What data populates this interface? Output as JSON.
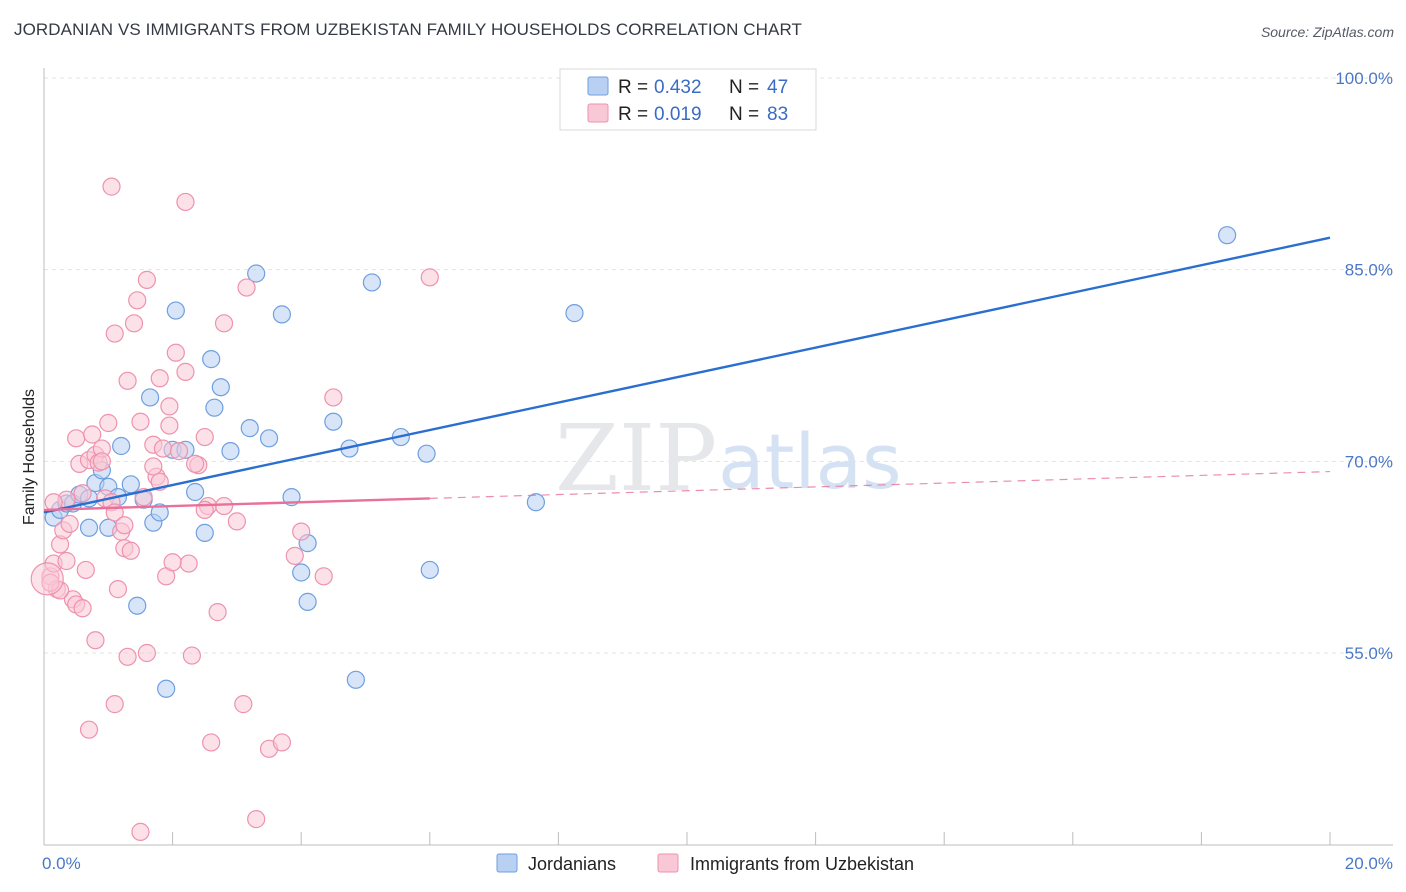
{
  "title": "JORDANIAN VS IMMIGRANTS FROM UZBEKISTAN FAMILY HOUSEHOLDS CORRELATION CHART",
  "source": "Source: ZipAtlas.com",
  "watermark": {
    "zip": "ZIP",
    "atlas": "atlas"
  },
  "legend": {
    "rows": [
      {
        "r_label": "R = ",
        "r_value": "0.432",
        "n_label": "N = ",
        "n_value": "47",
        "fill": "#b8d0f2",
        "stroke": "#6e9fe0"
      },
      {
        "r_label": "R = ",
        "r_value": "0.019",
        "n_label": "N = ",
        "n_value": "83",
        "fill": "#f9c8d6",
        "stroke": "#ee92ae"
      }
    ]
  },
  "bottom_legend": [
    "Jordanians",
    "Immigrants from Uzbekistan"
  ],
  "chart_data": {
    "type": "scatter",
    "ylabel": "Family Households",
    "x_min_label": "0.0%",
    "x_max_label": "20.0%",
    "xlim": [
      0,
      20
    ],
    "ylim": [
      40,
      102
    ],
    "y_ticks": [
      {
        "value": 100,
        "label": "100.0%"
      },
      {
        "value": 85,
        "label": "85.0%"
      },
      {
        "value": 70,
        "label": "70.0%"
      },
      {
        "value": 55,
        "label": "55.0%"
      }
    ],
    "grid": true,
    "series": [
      {
        "name": "Jordanians",
        "color": "#6e9fe0",
        "fill": "#b8d0f2",
        "trend": {
          "x": [
            0,
            20
          ],
          "y": [
            66.0,
            87.5
          ],
          "dashed_from": null
        },
        "points": [
          [
            0.15,
            65.6
          ],
          [
            0.25,
            66.2
          ],
          [
            0.35,
            66.7
          ],
          [
            0.45,
            66.7
          ],
          [
            0.55,
            67.4
          ],
          [
            0.7,
            67.1
          ],
          [
            0.8,
            68.3
          ],
          [
            0.9,
            69.3
          ],
          [
            0.7,
            64.8
          ],
          [
            1.0,
            68.0
          ],
          [
            1.2,
            71.2
          ],
          [
            1.35,
            68.2
          ],
          [
            1.55,
            67.0
          ],
          [
            1.7,
            65.2
          ],
          [
            1.8,
            66.0
          ],
          [
            1.65,
            75.0
          ],
          [
            2.0,
            70.9
          ],
          [
            2.2,
            70.9
          ],
          [
            2.35,
            67.6
          ],
          [
            2.5,
            64.4
          ],
          [
            2.6,
            78.0
          ],
          [
            2.65,
            74.2
          ],
          [
            2.75,
            75.8
          ],
          [
            2.9,
            70.8
          ],
          [
            3.2,
            72.6
          ],
          [
            3.5,
            71.8
          ],
          [
            3.7,
            81.5
          ],
          [
            3.85,
            67.2
          ],
          [
            4.1,
            63.6
          ],
          [
            4.0,
            61.3
          ],
          [
            4.1,
            59.0
          ],
          [
            4.5,
            73.1
          ],
          [
            4.75,
            71.0
          ],
          [
            5.1,
            84.0
          ],
          [
            5.55,
            71.9
          ],
          [
            5.95,
            70.6
          ],
          [
            6.0,
            61.5
          ],
          [
            7.65,
            66.8
          ],
          [
            8.25,
            81.6
          ],
          [
            18.4,
            87.7
          ],
          [
            1.45,
            58.7
          ],
          [
            1.9,
            52.2
          ],
          [
            4.85,
            52.9
          ],
          [
            2.05,
            81.8
          ],
          [
            1.15,
            67.2
          ],
          [
            3.3,
            84.7
          ],
          [
            1.0,
            64.8
          ]
        ]
      },
      {
        "name": "Immigrants from Uzbekistan",
        "color": "#ee92ae",
        "fill": "#f9c8d6",
        "trend": {
          "x": [
            0,
            20
          ],
          "y": [
            66.2,
            69.2
          ],
          "dashed_from": 6.0
        },
        "points": [
          [
            0.1,
            61.0
          ],
          [
            0.15,
            62.0
          ],
          [
            0.2,
            60.0
          ],
          [
            0.25,
            63.5
          ],
          [
            0.3,
            64.6
          ],
          [
            0.35,
            62.2
          ],
          [
            0.4,
            65.1
          ],
          [
            0.45,
            59.2
          ],
          [
            0.5,
            58.8
          ],
          [
            0.5,
            71.8
          ],
          [
            0.55,
            69.8
          ],
          [
            0.6,
            67.5
          ],
          [
            0.65,
            61.5
          ],
          [
            0.7,
            70.1
          ],
          [
            0.75,
            72.1
          ],
          [
            0.8,
            70.5
          ],
          [
            0.85,
            69.9
          ],
          [
            0.9,
            71.0
          ],
          [
            0.95,
            67.1
          ],
          [
            1.0,
            73.0
          ],
          [
            1.05,
            66.8
          ],
          [
            1.1,
            66.0
          ],
          [
            1.1,
            80.0
          ],
          [
            1.15,
            60.0
          ],
          [
            1.2,
            64.5
          ],
          [
            1.25,
            63.2
          ],
          [
            1.3,
            76.3
          ],
          [
            1.35,
            63.0
          ],
          [
            1.4,
            80.8
          ],
          [
            1.45,
            82.6
          ],
          [
            1.5,
            73.1
          ],
          [
            1.55,
            67.2
          ],
          [
            1.6,
            84.2
          ],
          [
            1.7,
            71.3
          ],
          [
            1.75,
            68.8
          ],
          [
            1.8,
            76.5
          ],
          [
            1.85,
            71.0
          ],
          [
            1.9,
            61.0
          ],
          [
            1.95,
            74.3
          ],
          [
            2.05,
            78.5
          ],
          [
            2.1,
            70.8
          ],
          [
            2.2,
            77.0
          ],
          [
            2.25,
            62.0
          ],
          [
            2.3,
            54.8
          ],
          [
            2.4,
            69.7
          ],
          [
            2.5,
            71.9
          ],
          [
            2.55,
            66.5
          ],
          [
            2.6,
            48.0
          ],
          [
            2.7,
            58.2
          ],
          [
            2.8,
            80.8
          ],
          [
            3.0,
            65.3
          ],
          [
            3.1,
            51.0
          ],
          [
            3.15,
            83.6
          ],
          [
            3.3,
            42.0
          ],
          [
            3.5,
            47.5
          ],
          [
            3.7,
            48.0
          ],
          [
            3.9,
            62.6
          ],
          [
            4.0,
            64.5
          ],
          [
            4.35,
            61.0
          ],
          [
            4.5,
            75.0
          ],
          [
            0.7,
            49.0
          ],
          [
            1.1,
            51.0
          ],
          [
            1.3,
            54.7
          ],
          [
            1.6,
            55.0
          ],
          [
            1.8,
            68.4
          ],
          [
            2.2,
            90.3
          ],
          [
            1.05,
            91.5
          ],
          [
            0.8,
            56.0
          ],
          [
            0.35,
            67.0
          ],
          [
            0.25,
            59.9
          ],
          [
            1.5,
            41.0
          ],
          [
            2.35,
            69.8
          ],
          [
            1.95,
            72.8
          ],
          [
            1.25,
            65.0
          ],
          [
            0.9,
            70.0
          ],
          [
            0.15,
            66.8
          ],
          [
            6.0,
            84.4
          ],
          [
            2.0,
            62.1
          ],
          [
            0.6,
            58.5
          ],
          [
            1.7,
            69.6
          ],
          [
            2.5,
            66.2
          ],
          [
            0.1,
            60.5
          ],
          [
            2.8,
            66.5
          ]
        ]
      }
    ]
  }
}
